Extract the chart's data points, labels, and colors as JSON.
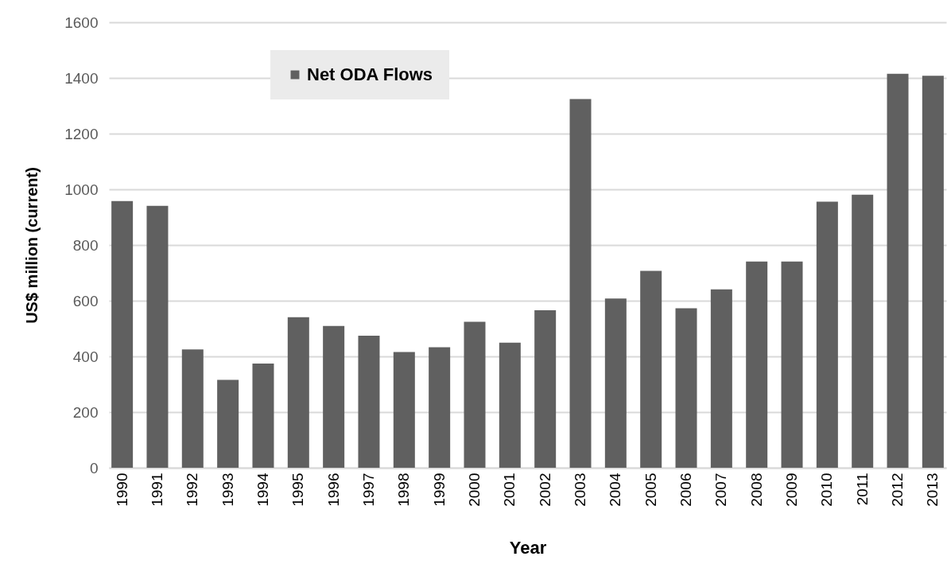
{
  "chart_data": {
    "type": "bar",
    "xlabel": "Year",
    "ylabel": "US$ million (current)",
    "categories": [
      "1990",
      "1991",
      "1992",
      "1993",
      "1994",
      "1995",
      "1996",
      "1997",
      "1998",
      "1999",
      "2000",
      "2001",
      "2002",
      "2003",
      "2004",
      "2005",
      "2006",
      "2007",
      "2008",
      "2009",
      "2010",
      "2011",
      "2012",
      "2013"
    ],
    "series": [
      {
        "name": "Net ODA Flows",
        "color": "#606060",
        "values": [
          958,
          941,
          425,
          316,
          374,
          541,
          509,
          474,
          416,
          433,
          524,
          449,
          566,
          1324,
          608,
          707,
          573,
          641,
          741,
          741,
          956,
          981,
          1415,
          1408
        ]
      }
    ],
    "ylim": [
      0,
      1600
    ],
    "yticks": [
      0,
      200,
      400,
      600,
      800,
      1000,
      1200,
      1400,
      1600
    ],
    "grid": "y",
    "legend": "top left"
  }
}
